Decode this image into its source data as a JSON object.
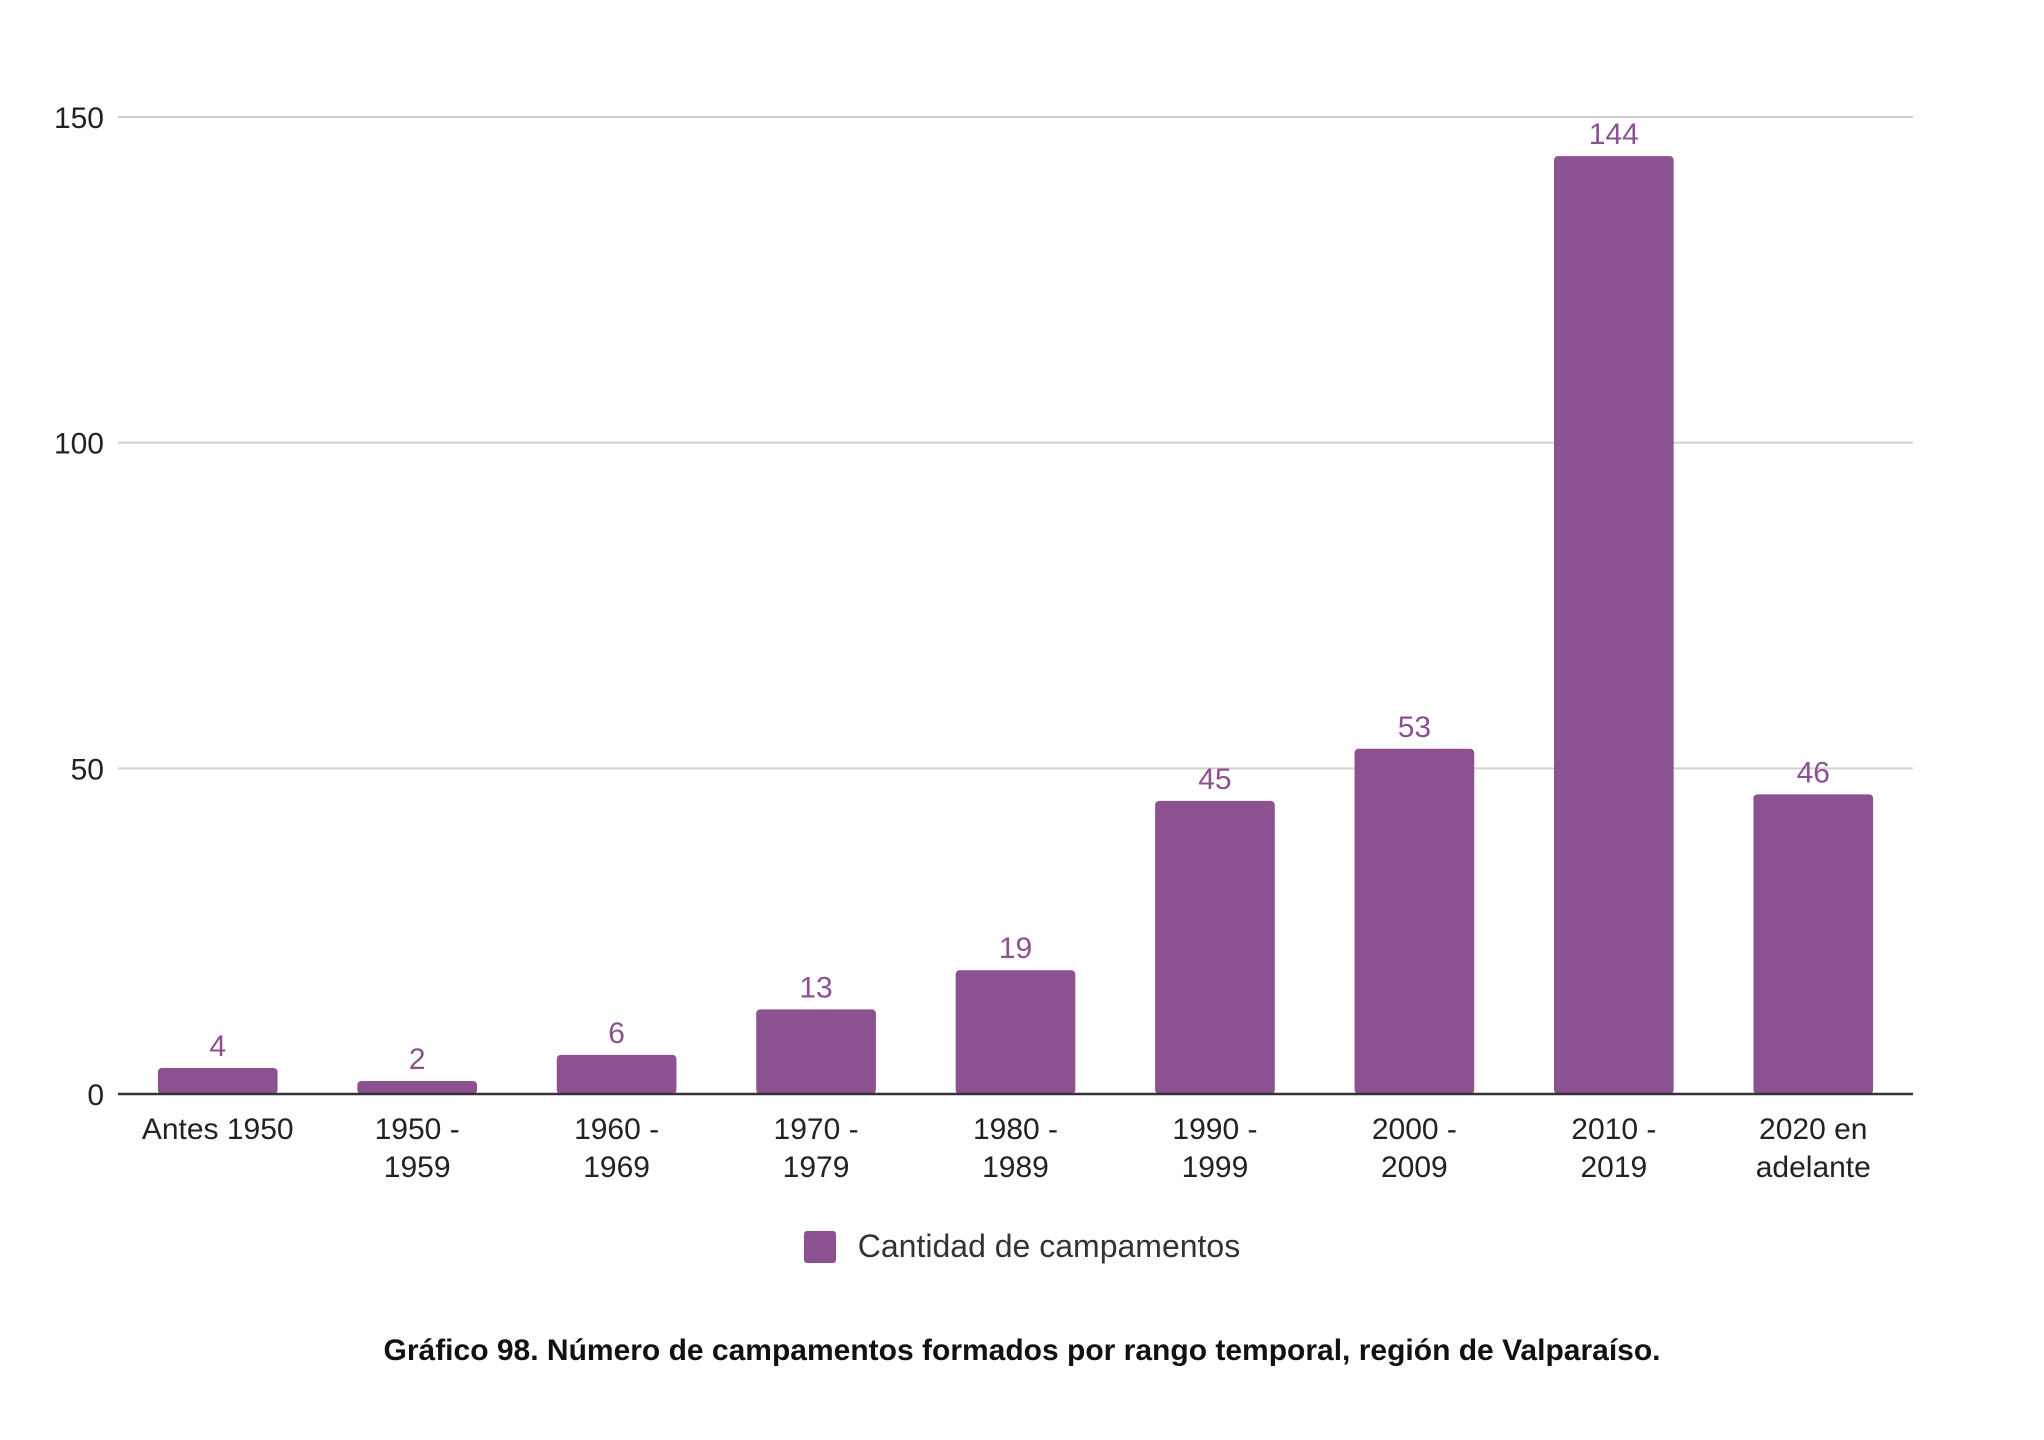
{
  "chart_data": {
    "type": "bar",
    "title": "Gráfico 98. Número de campamentos formados por rango temporal, región de Valparaíso.",
    "xlabel": "",
    "ylabel": "",
    "categories": [
      [
        "Antes 1950"
      ],
      [
        "1950 -",
        "1959"
      ],
      [
        "1960 -",
        "1969"
      ],
      [
        "1970 -",
        "1979"
      ],
      [
        "1980 -",
        "1989"
      ],
      [
        "1990 -",
        "1999"
      ],
      [
        "2000 -",
        "2009"
      ],
      [
        "2010 -",
        "2019"
      ],
      [
        "2020 en",
        "adelante"
      ]
    ],
    "series": [
      {
        "name": "Cantidad de campamentos",
        "values": [
          4,
          2,
          6,
          13,
          19,
          45,
          53,
          144,
          46
        ],
        "color": "#8b5190"
      }
    ],
    "ylim": [
      0,
      150
    ],
    "yticks": [
      "0",
      "50",
      "100",
      "150"
    ],
    "grid": true,
    "legend_position": "bottom"
  }
}
